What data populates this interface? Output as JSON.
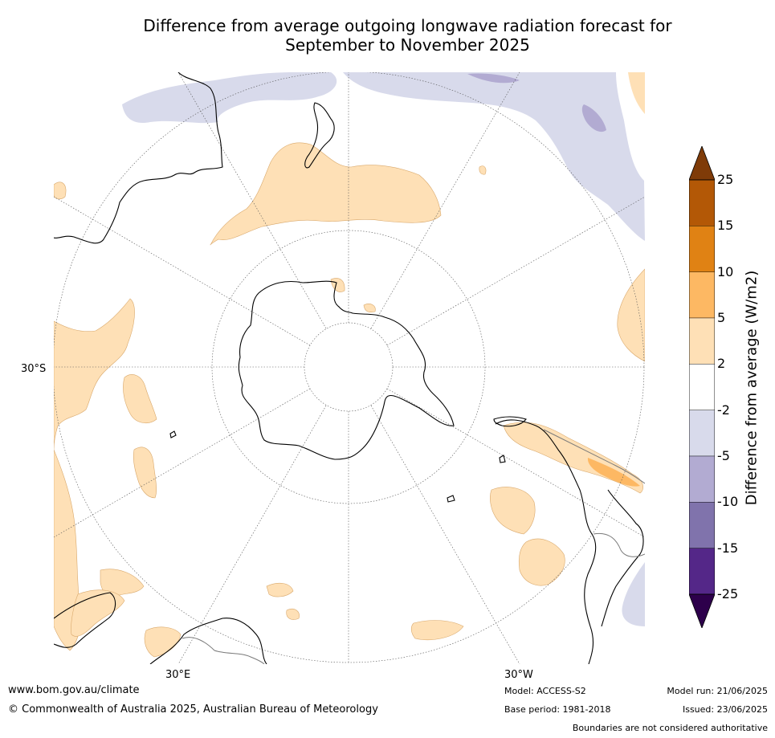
{
  "title_line1": "Difference from average outgoing longwave radiation forecast for",
  "title_line2": "September to November 2025",
  "map": {
    "latitude_labels": [
      "30°S"
    ],
    "longitude_labels": [
      "30°E",
      "30°W"
    ],
    "colors": {
      "land_outline": "#000000",
      "graticule": "#444444",
      "positive_2_5": "#fee0b6",
      "positive_5_10": "#fdb863",
      "positive_10_15": "#e08214",
      "positive_15_25": "#b35806",
      "positive_gt25": "#7f3b08",
      "negative_2_5": "#d8daeb",
      "negative_5_10": "#b2abd2",
      "negative_10_15": "#8073ac",
      "negative_15_25": "#542788",
      "negative_lt25": "#2d004b"
    }
  },
  "colorbar": {
    "label": "Difference from average (W/m2)",
    "ticks": [
      "25",
      "15",
      "10",
      "5",
      "2",
      "-2",
      "-5",
      "-10",
      "-15",
      "-25"
    ],
    "bands": [
      "#b35806",
      "#e08214",
      "#fdb863",
      "#fee0b6",
      "#ffffff",
      "#d8daeb",
      "#b2abd2",
      "#8073ac",
      "#542788"
    ],
    "top_extend_color": "#7f3b08",
    "bottom_extend_color": "#2d004b"
  },
  "footer": {
    "website": "www.bom.gov.au/climate",
    "copyright": "© Commonwealth of Australia 2025, Australian Bureau of Meteorology",
    "model": "Model: ACCESS-S2",
    "base_period": "Base period: 1981-2018",
    "model_run": "Model run: 21/06/2025",
    "issued": "Issued: 23/06/2025",
    "disclaimer": "Boundaries are not considered authoritative"
  }
}
